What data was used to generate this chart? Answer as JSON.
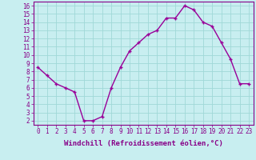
{
  "x": [
    0,
    1,
    2,
    3,
    4,
    5,
    6,
    7,
    8,
    9,
    10,
    11,
    12,
    13,
    14,
    15,
    16,
    17,
    18,
    19,
    20,
    21,
    22,
    23
  ],
  "y": [
    8.5,
    7.5,
    6.5,
    6.0,
    5.5,
    2.0,
    2.0,
    2.5,
    6.0,
    8.5,
    10.5,
    11.5,
    12.5,
    13.0,
    14.5,
    14.5,
    16.0,
    15.5,
    14.0,
    13.5,
    11.5,
    9.5,
    6.5,
    6.5
  ],
  "line_color": "#990099",
  "marker": "+",
  "marker_size": 3,
  "marker_linewidth": 1.0,
  "bg_color": "#c8eef0",
  "grid_color": "#a0d8d8",
  "xlabel": "Windchill (Refroidissement éolien,°C)",
  "xlim_min": -0.5,
  "xlim_max": 23.5,
  "ylim_min": 1.5,
  "ylim_max": 16.5,
  "yticks": [
    2,
    3,
    4,
    5,
    6,
    7,
    8,
    9,
    10,
    11,
    12,
    13,
    14,
    15,
    16
  ],
  "xticks": [
    0,
    1,
    2,
    3,
    4,
    5,
    6,
    7,
    8,
    9,
    10,
    11,
    12,
    13,
    14,
    15,
    16,
    17,
    18,
    19,
    20,
    21,
    22,
    23
  ],
  "tick_fontsize": 5.5,
  "xlabel_fontsize": 6.5,
  "label_color": "#880088",
  "tick_color": "#880088",
  "spine_color": "#880088",
  "line_width": 1.0
}
